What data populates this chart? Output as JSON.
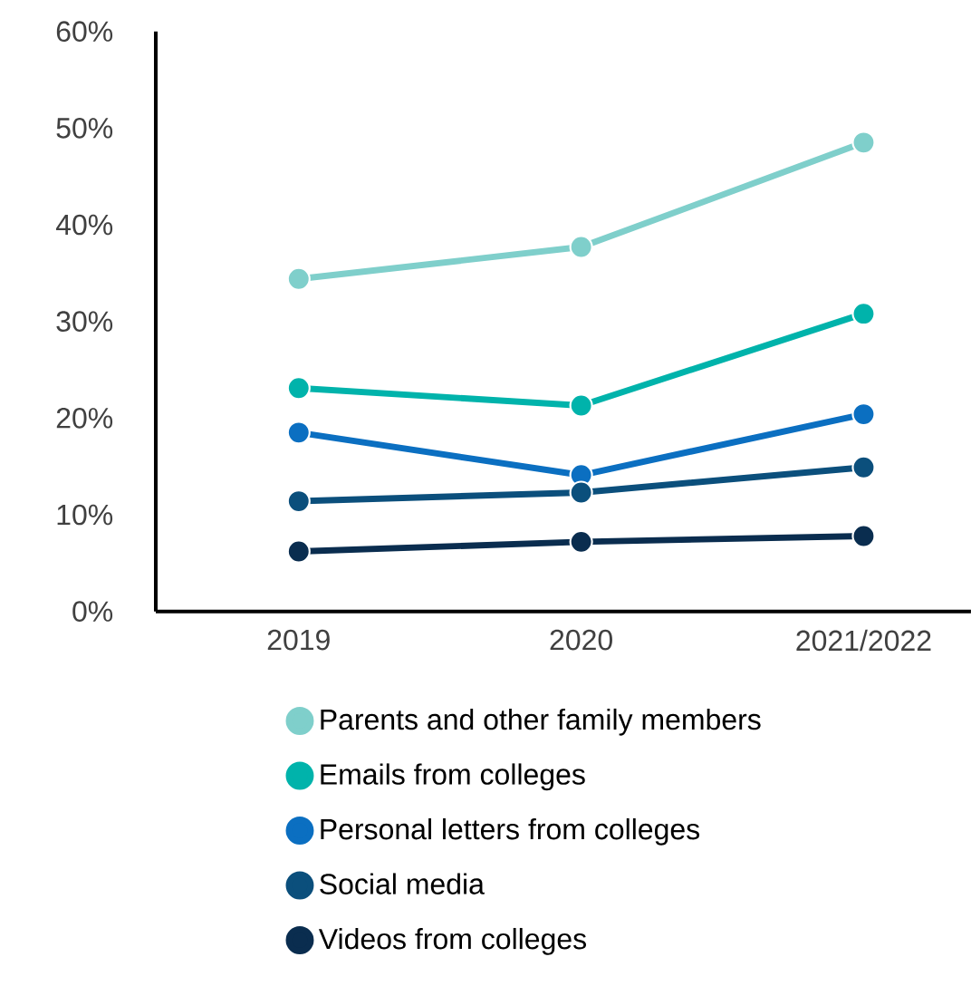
{
  "chart_data": {
    "type": "line",
    "categories": [
      "2019",
      "2020",
      "2021/2022"
    ],
    "series": [
      {
        "name": "Parents and other family members",
        "color": "#7fcfcb",
        "values": [
          34.4,
          37.7,
          48.5
        ]
      },
      {
        "name": "Emails from colleges",
        "color": "#00b3ab",
        "values": [
          23.1,
          21.3,
          30.8
        ]
      },
      {
        "name": "Personal letters from colleges",
        "color": "#0b6fc1",
        "values": [
          18.5,
          14.1,
          20.4
        ]
      },
      {
        "name": "Social media",
        "color": "#0b4f7c",
        "values": [
          11.4,
          12.3,
          14.9
        ]
      },
      {
        "name": "Videos from colleges",
        "color": "#0a2d4f",
        "values": [
          6.2,
          7.2,
          7.8
        ]
      }
    ],
    "ylim": [
      0,
      60
    ],
    "yticks": [
      {
        "value": 0,
        "label": "0%"
      },
      {
        "value": 10,
        "label": "10%"
      },
      {
        "value": 20,
        "label": "20%"
      },
      {
        "value": 30,
        "label": "30%"
      },
      {
        "value": 40,
        "label": "40%"
      },
      {
        "value": 50,
        "label": "50%"
      },
      {
        "value": 60,
        "label": "60%"
      }
    ],
    "legend": "bottom",
    "marker": "circle",
    "line_style": "solid",
    "grid": false
  }
}
